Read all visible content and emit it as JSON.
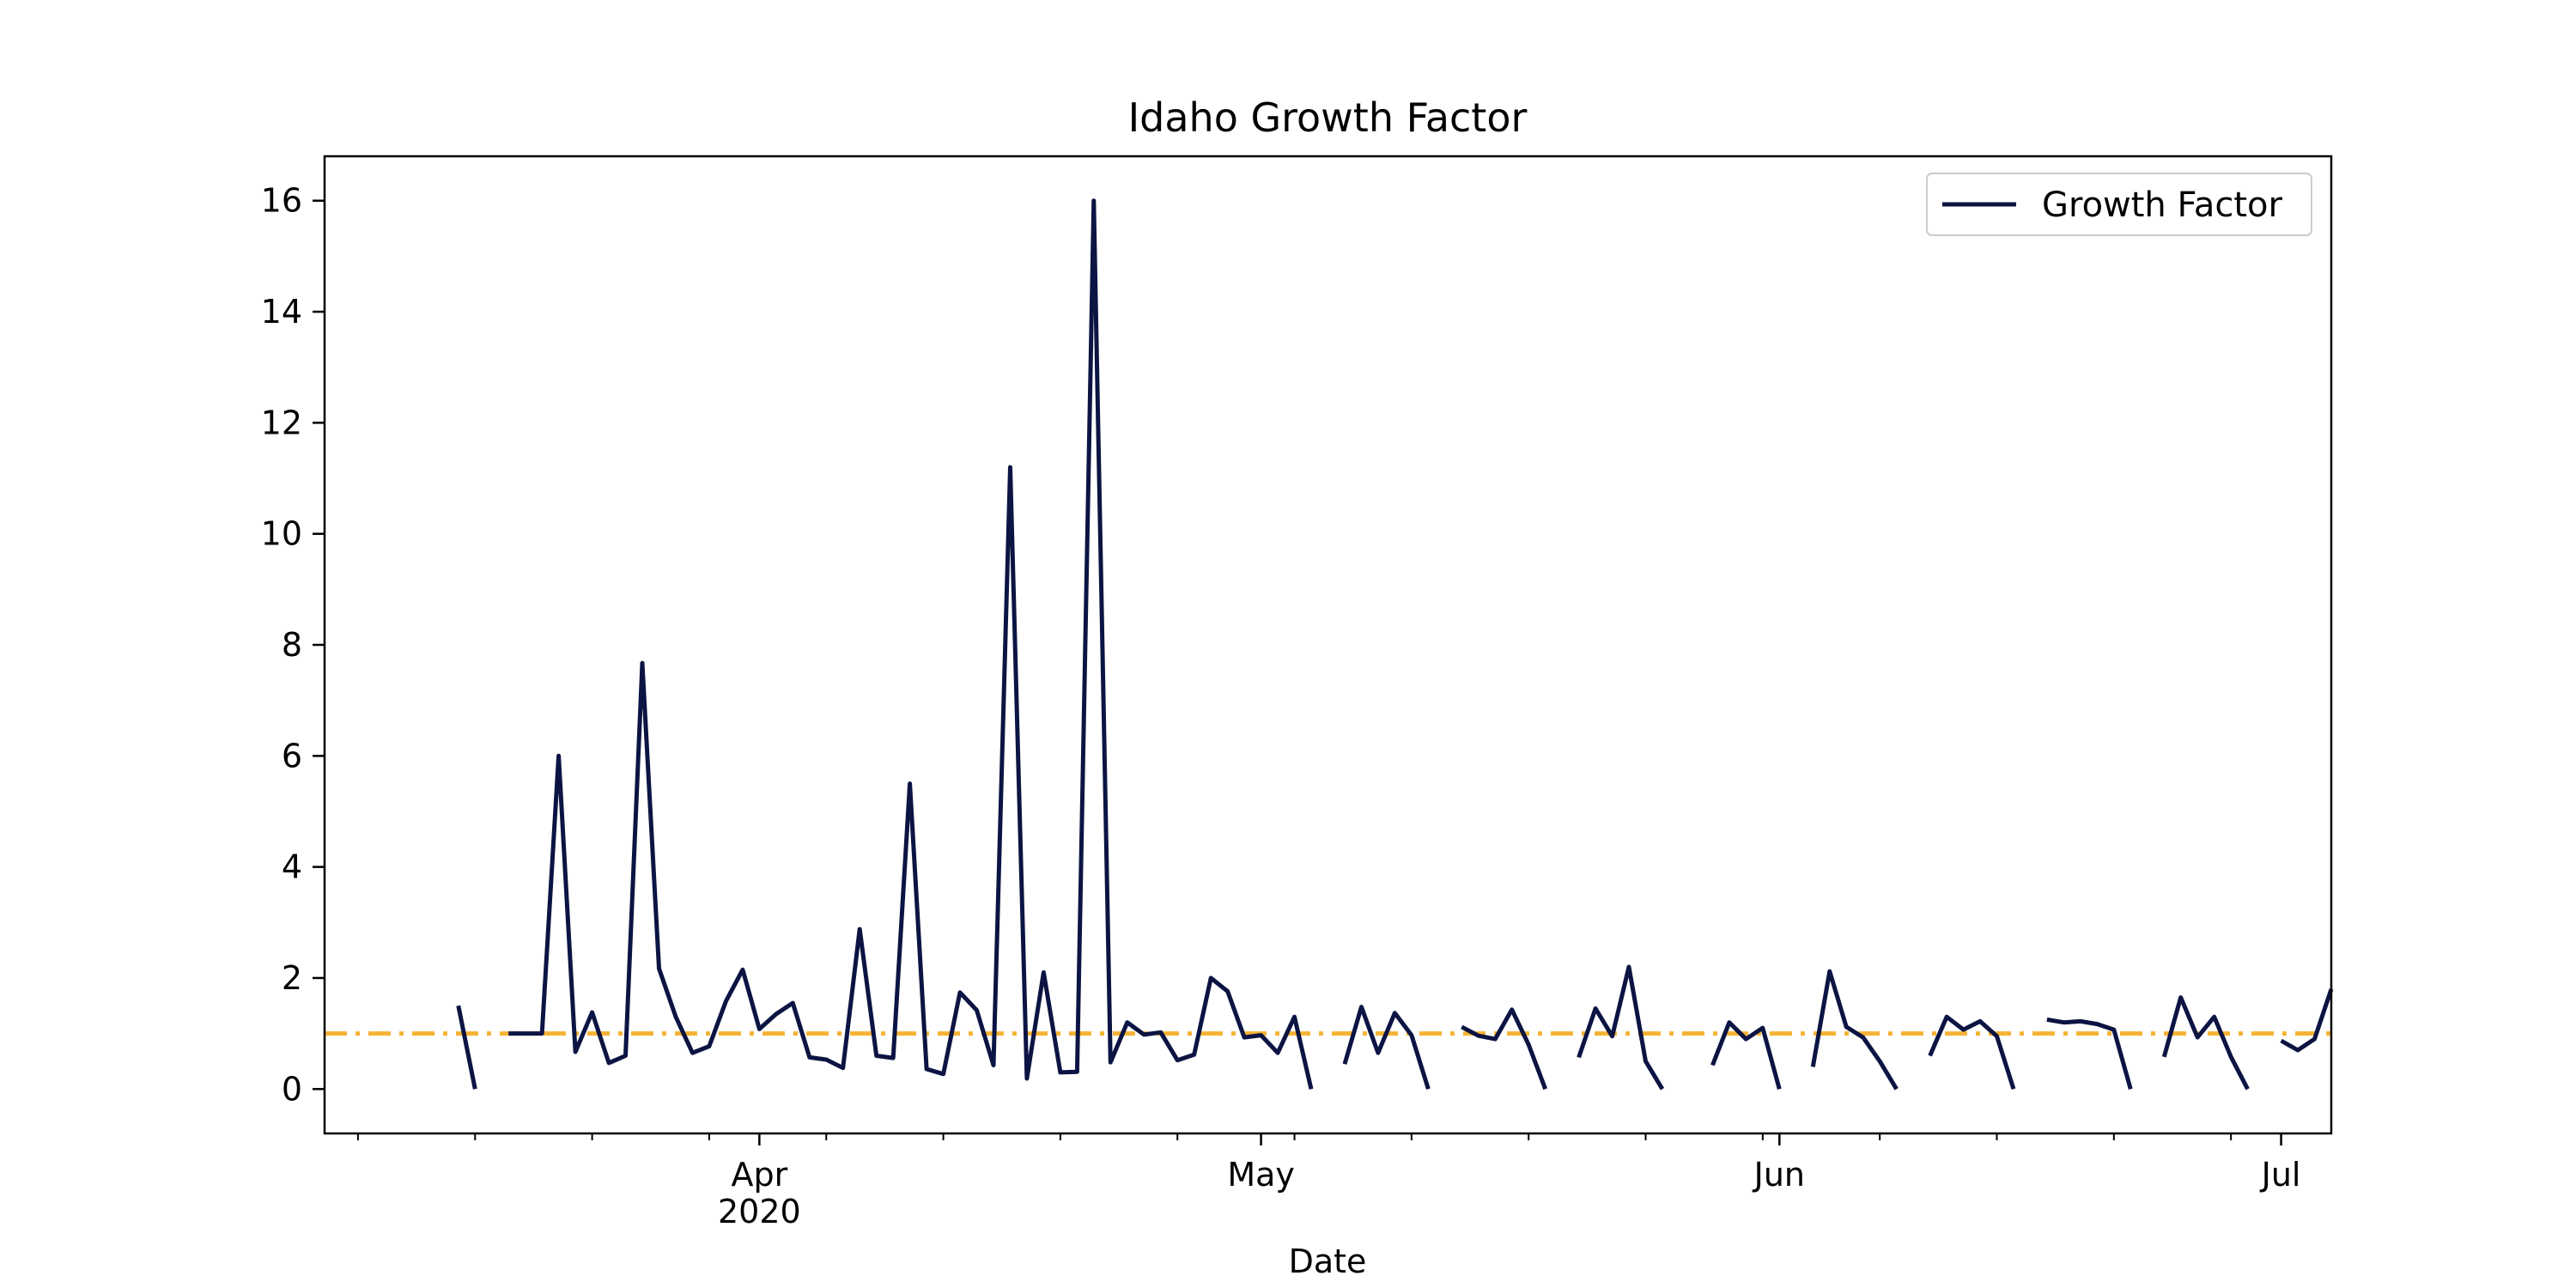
{
  "chart_data": {
    "type": "line",
    "title": "Idaho Growth Factor",
    "xlabel": "Date",
    "ylabel": "",
    "x_type": "date",
    "xlim": [
      "2020-03-06",
      "2020-07-04"
    ],
    "ylim": [
      -0.8,
      16.8
    ],
    "x_ticks": [
      {
        "date": "2020-04-01",
        "label": "Apr",
        "sublabel": "2020"
      },
      {
        "date": "2020-05-01",
        "label": "May",
        "sublabel": ""
      },
      {
        "date": "2020-06-01",
        "label": "Jun",
        "sublabel": ""
      },
      {
        "date": "2020-07-01",
        "label": "Jul",
        "sublabel": ""
      }
    ],
    "x_minor_tick_dates": [
      "2020-03-08",
      "2020-03-15",
      "2020-03-22",
      "2020-03-29",
      "2020-04-05",
      "2020-04-12",
      "2020-04-19",
      "2020-04-26",
      "2020-05-03",
      "2020-05-10",
      "2020-05-17",
      "2020-05-24",
      "2020-05-31",
      "2020-06-07",
      "2020-06-14",
      "2020-06-21",
      "2020-06-28"
    ],
    "y_ticks": [
      0,
      2,
      4,
      6,
      8,
      10,
      12,
      14,
      16
    ],
    "grid": false,
    "legend": {
      "position": "top-right"
    },
    "reference_line": {
      "y": 1.0,
      "color": "#f5b335",
      "style": "dash-dot"
    },
    "series": [
      {
        "name": "Growth Factor",
        "color": "#0b1442",
        "points": [
          [
            "2020-03-14",
            1.5
          ],
          [
            "2020-03-15",
            0.0
          ],
          [
            "2020-03-16",
            null
          ],
          [
            "2020-03-17",
            1.0
          ],
          [
            "2020-03-18",
            1.0
          ],
          [
            "2020-03-19",
            1.0
          ],
          [
            "2020-03-20",
            6.0
          ],
          [
            "2020-03-21",
            0.67
          ],
          [
            "2020-03-22",
            1.38
          ],
          [
            "2020-03-23",
            0.47
          ],
          [
            "2020-03-24",
            0.6
          ],
          [
            "2020-03-25",
            7.67
          ],
          [
            "2020-03-26",
            2.17
          ],
          [
            "2020-03-27",
            1.3
          ],
          [
            "2020-03-28",
            0.65
          ],
          [
            "2020-03-29",
            0.77
          ],
          [
            "2020-03-30",
            1.58
          ],
          [
            "2020-03-31",
            2.15
          ],
          [
            "2020-04-01",
            1.08
          ],
          [
            "2020-04-02",
            1.35
          ],
          [
            "2020-04-03",
            1.55
          ],
          [
            "2020-04-04",
            0.57
          ],
          [
            "2020-04-05",
            0.53
          ],
          [
            "2020-04-06",
            0.38
          ],
          [
            "2020-04-07",
            2.88
          ],
          [
            "2020-04-08",
            0.6
          ],
          [
            "2020-04-09",
            0.56
          ],
          [
            "2020-04-10",
            5.5
          ],
          [
            "2020-04-11",
            0.36
          ],
          [
            "2020-04-12",
            0.27
          ],
          [
            "2020-04-13",
            1.74
          ],
          [
            "2020-04-14",
            1.42
          ],
          [
            "2020-04-15",
            0.43
          ],
          [
            "2020-04-16",
            11.2
          ],
          [
            "2020-04-17",
            0.19
          ],
          [
            "2020-04-18",
            2.1
          ],
          [
            "2020-04-19",
            0.3
          ],
          [
            "2020-04-20",
            0.31
          ],
          [
            "2020-04-21",
            16.0
          ],
          [
            "2020-04-22",
            0.48
          ],
          [
            "2020-04-23",
            1.2
          ],
          [
            "2020-04-24",
            0.98
          ],
          [
            "2020-04-25",
            1.02
          ],
          [
            "2020-04-26",
            0.52
          ],
          [
            "2020-04-27",
            0.62
          ],
          [
            "2020-04-28",
            2.0
          ],
          [
            "2020-04-29",
            1.76
          ],
          [
            "2020-04-30",
            0.93
          ],
          [
            "2020-05-01",
            0.97
          ],
          [
            "2020-05-02",
            0.65
          ],
          [
            "2020-05-03",
            1.3
          ],
          [
            "2020-05-04",
            0.0
          ],
          [
            "2020-05-05",
            null
          ],
          [
            "2020-05-06",
            0.45
          ],
          [
            "2020-05-07",
            1.48
          ],
          [
            "2020-05-08",
            0.65
          ],
          [
            "2020-05-09",
            1.37
          ],
          [
            "2020-05-10",
            0.97
          ],
          [
            "2020-05-11",
            0.0
          ],
          [
            "2020-05-12",
            null
          ],
          [
            "2020-05-13",
            1.12
          ],
          [
            "2020-05-14",
            0.96
          ],
          [
            "2020-05-15",
            0.9
          ],
          [
            "2020-05-16",
            1.43
          ],
          [
            "2020-05-17",
            0.8
          ],
          [
            "2020-05-18",
            0.0
          ],
          [
            "2020-05-19",
            null
          ],
          [
            "2020-05-20",
            0.57
          ],
          [
            "2020-05-21",
            1.45
          ],
          [
            "2020-05-22",
            0.95
          ],
          [
            "2020-05-23",
            2.2
          ],
          [
            "2020-05-24",
            0.5
          ],
          [
            "2020-05-25",
            0.0
          ],
          [
            "2020-05-26",
            null
          ],
          [
            "2020-05-27",
            null
          ],
          [
            "2020-05-28",
            0.43
          ],
          [
            "2020-05-29",
            1.2
          ],
          [
            "2020-05-30",
            0.9
          ],
          [
            "2020-05-31",
            1.1
          ],
          [
            "2020-06-01",
            0.0
          ],
          [
            "2020-06-02",
            null
          ],
          [
            "2020-06-03",
            0.4
          ],
          [
            "2020-06-04",
            2.12
          ],
          [
            "2020-06-05",
            1.12
          ],
          [
            "2020-06-06",
            0.93
          ],
          [
            "2020-06-07",
            0.5
          ],
          [
            "2020-06-08",
            0.0
          ],
          [
            "2020-06-09",
            null
          ],
          [
            "2020-06-10",
            0.6
          ],
          [
            "2020-06-11",
            1.3
          ],
          [
            "2020-06-12",
            1.07
          ],
          [
            "2020-06-13",
            1.22
          ],
          [
            "2020-06-14",
            0.95
          ],
          [
            "2020-06-15",
            0.0
          ],
          [
            "2020-06-16",
            null
          ],
          [
            "2020-06-17",
            1.25
          ],
          [
            "2020-06-18",
            1.2
          ],
          [
            "2020-06-19",
            1.22
          ],
          [
            "2020-06-20",
            1.17
          ],
          [
            "2020-06-21",
            1.07
          ],
          [
            "2020-06-22",
            0.0
          ],
          [
            "2020-06-23",
            null
          ],
          [
            "2020-06-24",
            0.58
          ],
          [
            "2020-06-25",
            1.65
          ],
          [
            "2020-06-26",
            0.93
          ],
          [
            "2020-06-27",
            1.3
          ],
          [
            "2020-06-28",
            0.58
          ],
          [
            "2020-06-29",
            0.0
          ],
          [
            "2020-06-30",
            null
          ],
          [
            "2020-07-01",
            0.87
          ],
          [
            "2020-07-02",
            0.7
          ],
          [
            "2020-07-03",
            0.9
          ],
          [
            "2020-07-04",
            1.8
          ]
        ]
      }
    ]
  }
}
